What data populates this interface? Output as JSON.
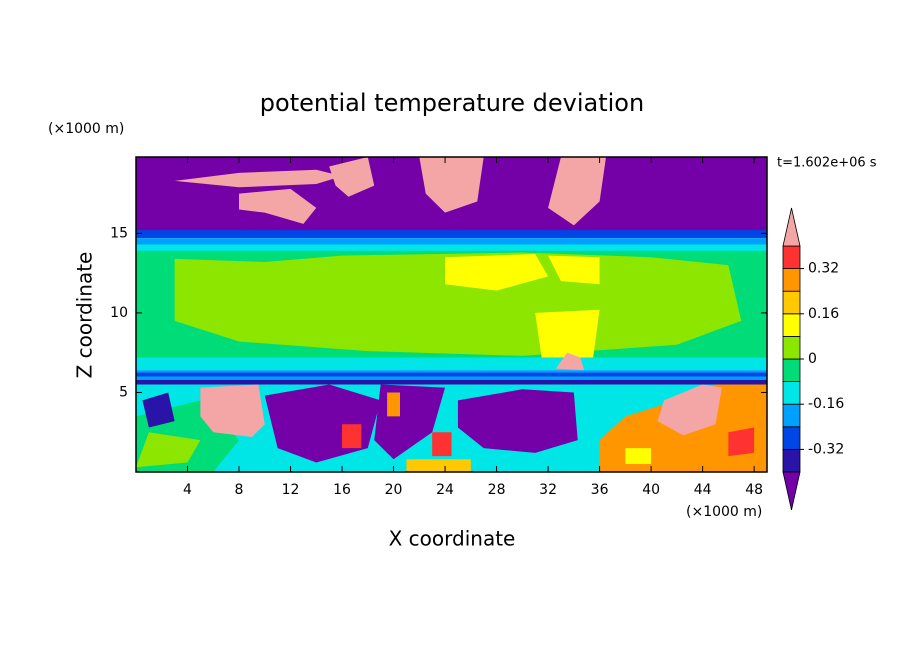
{
  "chart_data": {
    "type": "contour",
    "title": "potential temperature deviation",
    "x_label": "X coordinate",
    "y_label": "Z coordinate",
    "x_unit": "(×1000 m)",
    "y_unit": "(×1000 m)",
    "time_label": "t=1.602e+06 s",
    "xlim": [
      0,
      49
    ],
    "ylim": [
      0,
      19.8
    ],
    "xticks": [
      4,
      8,
      12,
      16,
      20,
      24,
      28,
      32,
      36,
      40,
      44,
      48
    ],
    "yticks": [
      5,
      10,
      15
    ],
    "colorbar": {
      "levels": [
        -0.4,
        -0.32,
        -0.24,
        -0.16,
        -0.08,
        0,
        0.08,
        0.16,
        0.24,
        0.32,
        0.4
      ],
      "ticks": [
        -0.32,
        -0.16,
        0,
        0.16,
        0.32
      ],
      "colors": [
        "#7400a8",
        "#2a14a8",
        "#0046e6",
        "#00a0ff",
        "#00e6e6",
        "#00dc78",
        "#8ce600",
        "#ffff00",
        "#ffc800",
        "#ff9600",
        "#ff3232",
        "#f4a6a6"
      ]
    }
  }
}
